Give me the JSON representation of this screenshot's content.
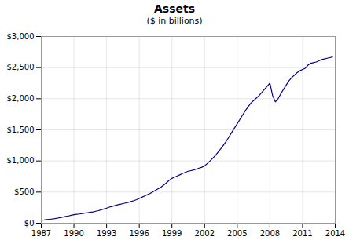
{
  "chart_data": {
    "type": "line",
    "title": "Assets",
    "subtitle": "($ in billions)",
    "color": "#00008B",
    "grid": true,
    "xlim": [
      1987,
      2014
    ],
    "ylim": [
      0,
      3000
    ],
    "xticks": [
      1987,
      1990,
      1993,
      1996,
      1999,
      2002,
      2005,
      2008,
      2011,
      2014
    ],
    "yticks": [
      {
        "value": 0,
        "label": "$0"
      },
      {
        "value": 500,
        "label": "$500"
      },
      {
        "value": 1000,
        "label": "$1,000"
      },
      {
        "value": 1500,
        "label": "$1,500"
      },
      {
        "value": 2000,
        "label": "$2,000"
      },
      {
        "value": 2500,
        "label": "$2,500"
      },
      {
        "value": 3000,
        "label": "$3,000"
      }
    ],
    "x": [
      1987,
      1987.25,
      1987.5,
      1987.75,
      1988,
      1988.25,
      1988.5,
      1988.75,
      1989,
      1989.25,
      1989.5,
      1989.75,
      1990,
      1990.25,
      1990.5,
      1990.75,
      1991,
      1991.25,
      1991.5,
      1991.75,
      1992,
      1992.25,
      1992.5,
      1992.75,
      1993,
      1993.25,
      1993.5,
      1993.75,
      1994,
      1994.25,
      1994.5,
      1994.75,
      1995,
      1995.25,
      1995.5,
      1995.75,
      1996,
      1996.25,
      1996.5,
      1996.75,
      1997,
      1997.25,
      1997.5,
      1997.75,
      1998,
      1998.25,
      1998.5,
      1998.75,
      1999,
      1999.25,
      1999.5,
      1999.75,
      2000,
      2000.25,
      2000.5,
      2000.75,
      2001,
      2001.25,
      2001.5,
      2001.75,
      2002,
      2002.25,
      2002.5,
      2002.75,
      2003,
      2003.25,
      2003.5,
      2003.75,
      2004,
      2004.25,
      2004.5,
      2004.75,
      2005,
      2005.25,
      2005.5,
      2005.75,
      2006,
      2006.25,
      2006.5,
      2006.75,
      2007,
      2007.25,
      2007.5,
      2007.75,
      2008,
      2008.25,
      2008.5,
      2008.75,
      2009,
      2009.25,
      2009.5,
      2009.75,
      2010,
      2010.25,
      2010.5,
      2010.75,
      2011,
      2011.25,
      2011.5,
      2011.75,
      2012,
      2012.25,
      2012.5,
      2012.75,
      2013,
      2013.25,
      2013.5,
      2013.75
    ],
    "values": [
      47,
      52,
      58,
      63,
      68,
      74,
      82,
      90,
      100,
      108,
      117,
      128,
      138,
      143,
      148,
      155,
      162,
      168,
      175,
      182,
      192,
      202,
      215,
      228,
      242,
      258,
      270,
      282,
      295,
      305,
      315,
      325,
      335,
      348,
      362,
      378,
      398,
      418,
      438,
      458,
      478,
      505,
      530,
      555,
      580,
      615,
      650,
      690,
      720,
      740,
      760,
      780,
      800,
      820,
      835,
      845,
      855,
      870,
      885,
      900,
      920,
      960,
      1000,
      1045,
      1090,
      1145,
      1200,
      1260,
      1320,
      1390,
      1460,
      1530,
      1600,
      1670,
      1740,
      1810,
      1870,
      1930,
      1970,
      2010,
      2050,
      2100,
      2150,
      2200,
      2250,
      2050,
      1950,
      2000,
      2080,
      2150,
      2220,
      2290,
      2340,
      2380,
      2420,
      2450,
      2470,
      2490,
      2540,
      2570,
      2580,
      2590,
      2610,
      2630,
      2640,
      2650,
      2660,
      2670
    ]
  }
}
